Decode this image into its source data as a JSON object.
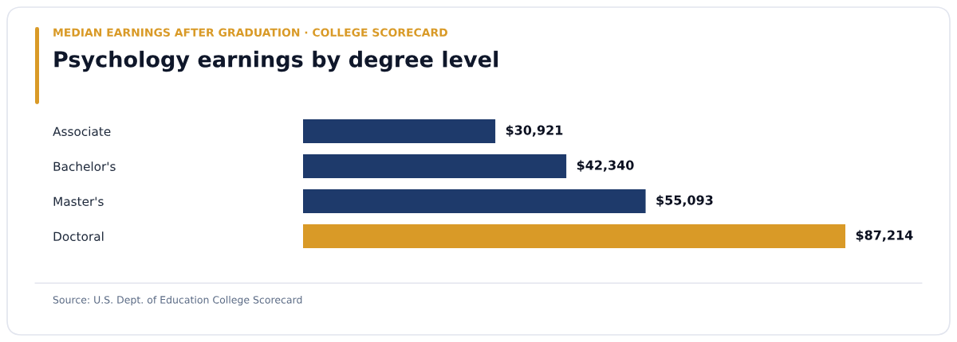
{
  "chart_data": {
    "type": "bar",
    "orientation": "horizontal",
    "title": "Psychology earnings by degree level",
    "subtitle": "MEDIAN EARNINGS AFTER GRADUATION · COLLEGE SCORECARD",
    "categories": [
      "Associate",
      "Bachelor's",
      "Master's",
      "Doctoral"
    ],
    "values": [
      30921,
      42340,
      55093,
      87214
    ],
    "colors": [
      "#1e3a6b",
      "#1e3a6b",
      "#1e3a6b",
      "#d99a27"
    ],
    "value_labels": [
      "$30,921",
      "$42,340",
      "$55,093",
      "$87,214"
    ],
    "annotations": [
      "Source: U.S. Dept. of Education College Scorecard"
    ],
    "tick_labels": "y"
  }
}
